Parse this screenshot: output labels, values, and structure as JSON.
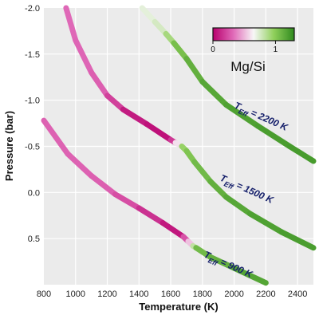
{
  "chart_data": {
    "type": "line",
    "xlabel": "Temperature (K)",
    "ylabel": "Pressure (bar)",
    "xlim": [
      800,
      2500
    ],
    "ylim": [
      -2.0,
      1.0
    ],
    "x_ticks": [
      "800",
      "1000",
      "1200",
      "1400",
      "1600",
      "1800",
      "2000",
      "2200",
      "2400"
    ],
    "y_ticks": [
      "-2.0",
      "-1.5",
      "-1.0",
      "-0.5",
      "0.0",
      "0.5"
    ],
    "grid": true,
    "background": "#ebebeb",
    "colorbar": {
      "title": "Mg/Si",
      "ticks": [
        "0",
        "1"
      ],
      "range": [
        0,
        1.3
      ],
      "colors": [
        "#b8006d",
        "#e06ab8",
        "#f7f7f7",
        "#8fcf5a",
        "#2f8a1e"
      ]
    },
    "series": [
      {
        "label_lines": [
          "T",
          "Eff",
          " = 900 K"
        ],
        "points": [
          {
            "x": 800,
            "y": -0.78,
            "c": 0.3
          },
          {
            "x": 950,
            "y": -0.42,
            "c": 0.3
          },
          {
            "x": 1100,
            "y": -0.18,
            "c": 0.3
          },
          {
            "x": 1250,
            "y": 0.02,
            "c": 0.28
          },
          {
            "x": 1400,
            "y": 0.17,
            "c": 0.2
          },
          {
            "x": 1550,
            "y": 0.33,
            "c": 0.1
          },
          {
            "x": 1680,
            "y": 0.48,
            "c": 0.05
          },
          {
            "x": 1710,
            "y": 0.53,
            "c": 0.45
          },
          {
            "x": 1740,
            "y": 0.58,
            "c": 0.6
          },
          {
            "x": 1760,
            "y": 0.6,
            "c": 1.05
          },
          {
            "x": 1850,
            "y": 0.7,
            "c": 1.1
          },
          {
            "x": 2000,
            "y": 0.82,
            "c": 1.15
          },
          {
            "x": 2200,
            "y": 0.98,
            "c": 1.2
          }
        ]
      },
      {
        "label_lines": [
          "T",
          "Eff",
          " = 1500 K"
        ],
        "points": [
          {
            "x": 940,
            "y": -2.0,
            "c": 0.32
          },
          {
            "x": 1000,
            "y": -1.65,
            "c": 0.32
          },
          {
            "x": 1100,
            "y": -1.3,
            "c": 0.3
          },
          {
            "x": 1200,
            "y": -1.05,
            "c": 0.28
          },
          {
            "x": 1300,
            "y": -0.9,
            "c": 0.12
          },
          {
            "x": 1450,
            "y": -0.74,
            "c": 0.05
          },
          {
            "x": 1600,
            "y": -0.57,
            "c": 0.05
          },
          {
            "x": 1630,
            "y": -0.54,
            "c": 0.3
          },
          {
            "x": 1670,
            "y": -0.5,
            "c": 0.9
          },
          {
            "x": 1700,
            "y": -0.45,
            "c": 1.0
          },
          {
            "x": 1750,
            "y": -0.33,
            "c": 1.05
          },
          {
            "x": 1850,
            "y": -0.12,
            "c": 1.1
          },
          {
            "x": 1950,
            "y": 0.05,
            "c": 1.15
          },
          {
            "x": 2100,
            "y": 0.23,
            "c": 1.18
          },
          {
            "x": 2300,
            "y": 0.43,
            "c": 1.2
          },
          {
            "x": 2500,
            "y": 0.6,
            "c": 1.22
          }
        ]
      },
      {
        "label_lines": [
          "T",
          "Eff",
          " = 2200 K"
        ],
        "points": [
          {
            "x": 1420,
            "y": -2.0,
            "c": 0.7
          },
          {
            "x": 1500,
            "y": -1.85,
            "c": 0.72
          },
          {
            "x": 1570,
            "y": -1.72,
            "c": 0.8
          },
          {
            "x": 1620,
            "y": -1.62,
            "c": 1.0
          },
          {
            "x": 1700,
            "y": -1.45,
            "c": 1.1
          },
          {
            "x": 1800,
            "y": -1.2,
            "c": 1.15
          },
          {
            "x": 1950,
            "y": -0.95,
            "c": 1.18
          },
          {
            "x": 2150,
            "y": -0.72,
            "c": 1.2
          },
          {
            "x": 2350,
            "y": -0.5,
            "c": 1.22
          },
          {
            "x": 2500,
            "y": -0.34,
            "c": 1.22
          }
        ]
      }
    ]
  }
}
